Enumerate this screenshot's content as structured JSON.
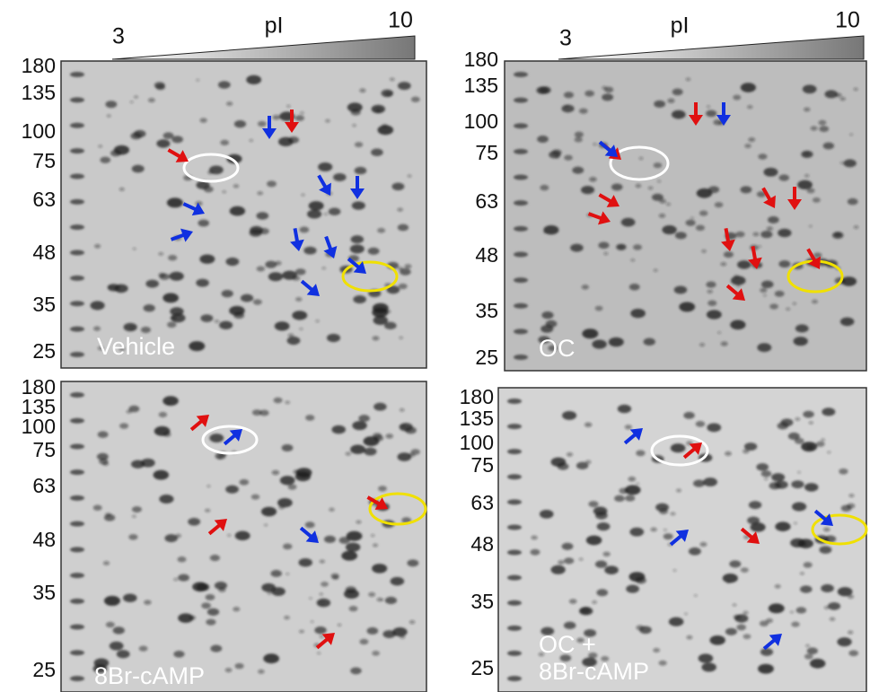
{
  "pi_axis": {
    "low": "3",
    "label": "pI",
    "high": "10"
  },
  "panels": [
    {
      "label": [
        "Vehicle"
      ],
      "mw": [
        180,
        135,
        100,
        75,
        63,
        48,
        35,
        25
      ]
    },
    {
      "label": [
        "OC"
      ],
      "mw": [
        180,
        135,
        100,
        75,
        63,
        48,
        35,
        25
      ]
    },
    {
      "label": [
        "8Br-cAMP"
      ],
      "mw": [
        180,
        135,
        100,
        75,
        63,
        48,
        35,
        25
      ]
    },
    {
      "label": [
        "OC +",
        "8Br-cAMP"
      ],
      "mw": [
        180,
        135,
        100,
        75,
        63,
        48,
        35,
        25
      ]
    }
  ]
}
